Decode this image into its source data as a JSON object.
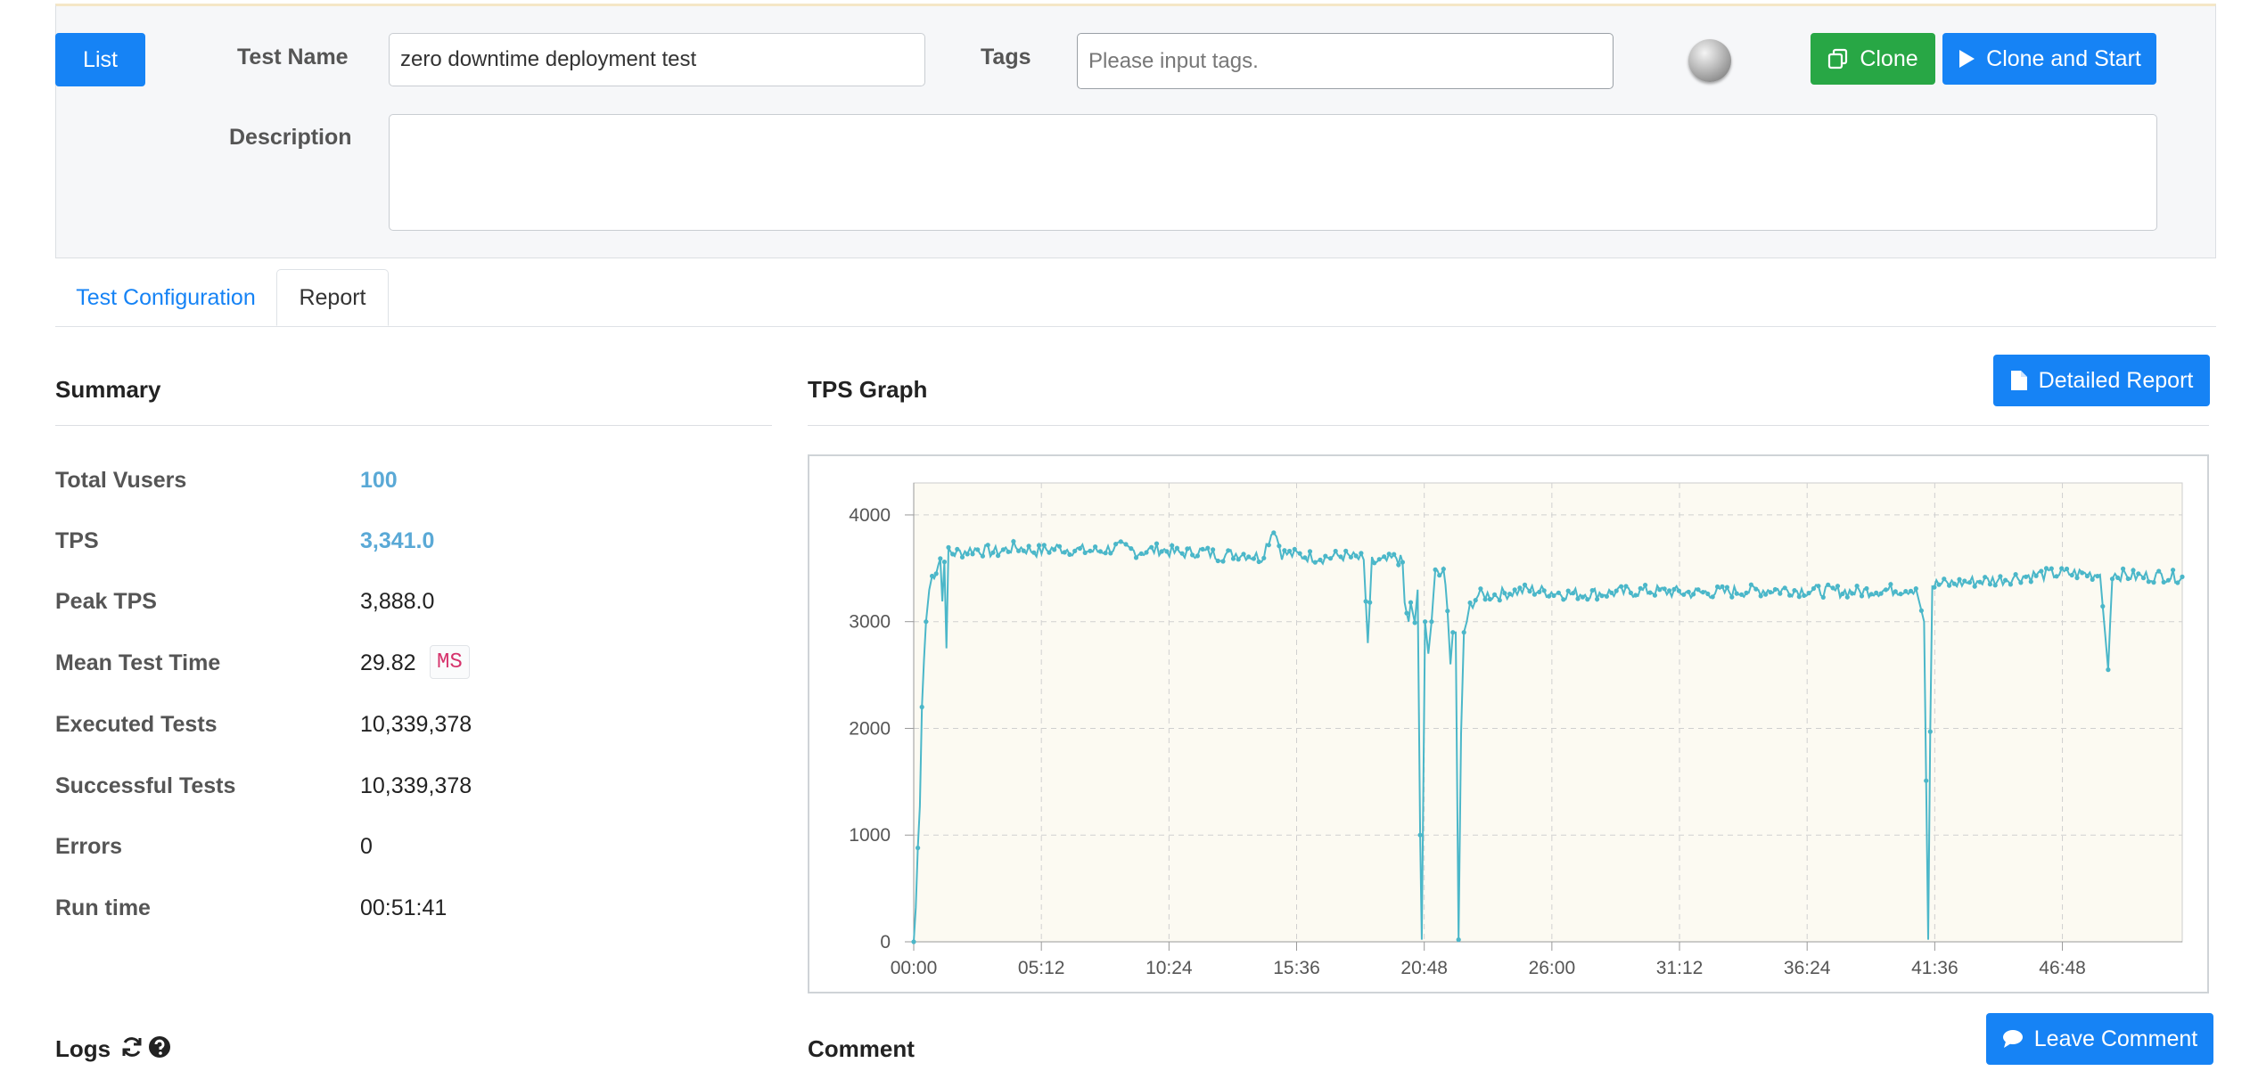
{
  "header": {
    "list_label": "List",
    "test_name_label": "Test Name",
    "test_name_value": "zero downtime deployment test",
    "tags_label": "Tags",
    "tags_placeholder": "Please input tags.",
    "clone_label": "Clone",
    "clone_start_label": "Clone and Start",
    "description_label": "Description",
    "description_value": ""
  },
  "tabs": [
    {
      "label": "Test Configuration",
      "active": false
    },
    {
      "label": "Report",
      "active": true
    }
  ],
  "summary": {
    "title": "Summary",
    "rows": [
      {
        "label": "Total Vusers",
        "value": "100"
      },
      {
        "label": "TPS",
        "value": "3,341.0"
      },
      {
        "label": "Peak TPS",
        "value": "3,888.0"
      },
      {
        "label": "Mean Test Time",
        "value": "29.82",
        "unit": "MS"
      },
      {
        "label": "Executed Tests",
        "value": "10,339,378"
      },
      {
        "label": "Successful Tests",
        "value": "10,339,378"
      },
      {
        "label": "Errors",
        "value": "0"
      },
      {
        "label": "Run time",
        "value": "00:51:41"
      }
    ]
  },
  "tps_graph": {
    "title": "TPS Graph",
    "detailed_report_label": "Detailed Report"
  },
  "logs": {
    "title": "Logs"
  },
  "comment": {
    "title": "Comment",
    "leave_comment_label": "Leave Comment"
  },
  "colors": {
    "accent": "#1683f5",
    "success": "#28a745",
    "series": "#4bb7c9",
    "plot_bg": "#fcfaf2"
  },
  "chart_data": {
    "type": "line",
    "title": "",
    "xlabel": "",
    "ylabel": "",
    "x_ticks": [
      "00:00",
      "05:12",
      "10:24",
      "15:36",
      "20:48",
      "26:00",
      "31:12",
      "36:24",
      "41:36",
      "46:48"
    ],
    "y_ticks": [
      0,
      1000,
      2000,
      3000,
      4000
    ],
    "xlim_seconds": [
      0,
      3101
    ],
    "ylim": [
      0,
      4300
    ],
    "grid": true,
    "series": [
      {
        "name": "",
        "points": [
          [
            0,
            0
          ],
          [
            5,
            320
          ],
          [
            10,
            880
          ],
          [
            15,
            1270
          ],
          [
            20,
            2200
          ],
          [
            25,
            2640
          ],
          [
            30,
            3000
          ],
          [
            38,
            3300
          ],
          [
            45,
            3420
          ],
          [
            55,
            3480
          ],
          [
            65,
            3590
          ],
          [
            70,
            3240
          ],
          [
            75,
            3560
          ],
          [
            80,
            2750
          ],
          [
            85,
            3650
          ],
          [
            100,
            3640
          ],
          [
            150,
            3680
          ],
          [
            200,
            3650
          ],
          [
            250,
            3700
          ],
          [
            300,
            3660
          ],
          [
            350,
            3690
          ],
          [
            400,
            3670
          ],
          [
            450,
            3660
          ],
          [
            500,
            3700
          ],
          [
            550,
            3650
          ],
          [
            600,
            3680
          ],
          [
            650,
            3640
          ],
          [
            700,
            3660
          ],
          [
            750,
            3620
          ],
          [
            800,
            3640
          ],
          [
            850,
            3600
          ],
          [
            880,
            3880
          ],
          [
            900,
            3640
          ],
          [
            950,
            3620
          ],
          [
            1000,
            3600
          ],
          [
            1050,
            3620
          ],
          [
            1100,
            3580
          ],
          [
            1110,
            2800
          ],
          [
            1120,
            3560
          ],
          [
            1150,
            3560
          ],
          [
            1180,
            3600
          ],
          [
            1195,
            3550
          ],
          [
            1200,
            3160
          ],
          [
            1205,
            3080
          ],
          [
            1210,
            3000
          ],
          [
            1215,
            3180
          ],
          [
            1225,
            2990
          ],
          [
            1232,
            3300
          ],
          [
            1238,
            1000
          ],
          [
            1242,
            20
          ],
          [
            1250,
            3000
          ],
          [
            1258,
            2700
          ],
          [
            1266,
            3000
          ],
          [
            1275,
            3500
          ],
          [
            1285,
            3400
          ],
          [
            1295,
            3500
          ],
          [
            1305,
            3100
          ],
          [
            1312,
            2600
          ],
          [
            1318,
            2900
          ],
          [
            1325,
            2900
          ],
          [
            1332,
            20
          ],
          [
            1338,
            1950
          ],
          [
            1345,
            2900
          ],
          [
            1352,
            3000
          ],
          [
            1360,
            3150
          ],
          [
            1380,
            3250
          ],
          [
            1420,
            3250
          ],
          [
            1500,
            3300
          ],
          [
            1600,
            3260
          ],
          [
            1700,
            3270
          ],
          [
            1800,
            3290
          ],
          [
            1900,
            3270
          ],
          [
            2000,
            3280
          ],
          [
            2100,
            3300
          ],
          [
            2200,
            3290
          ],
          [
            2300,
            3280
          ],
          [
            2400,
            3300
          ],
          [
            2450,
            3310
          ],
          [
            2470,
            3000
          ],
          [
            2480,
            20
          ],
          [
            2485,
            1970
          ],
          [
            2490,
            3340
          ],
          [
            2500,
            3350
          ],
          [
            2550,
            3360
          ],
          [
            2600,
            3380
          ],
          [
            2650,
            3390
          ],
          [
            2700,
            3420
          ],
          [
            2750,
            3440
          ],
          [
            2800,
            3450
          ],
          [
            2850,
            3450
          ],
          [
            2900,
            3440
          ],
          [
            2920,
            2550
          ],
          [
            2930,
            3450
          ],
          [
            2950,
            3440
          ],
          [
            3000,
            3420
          ],
          [
            3050,
            3430
          ],
          [
            3101,
            3420
          ]
        ]
      }
    ]
  }
}
